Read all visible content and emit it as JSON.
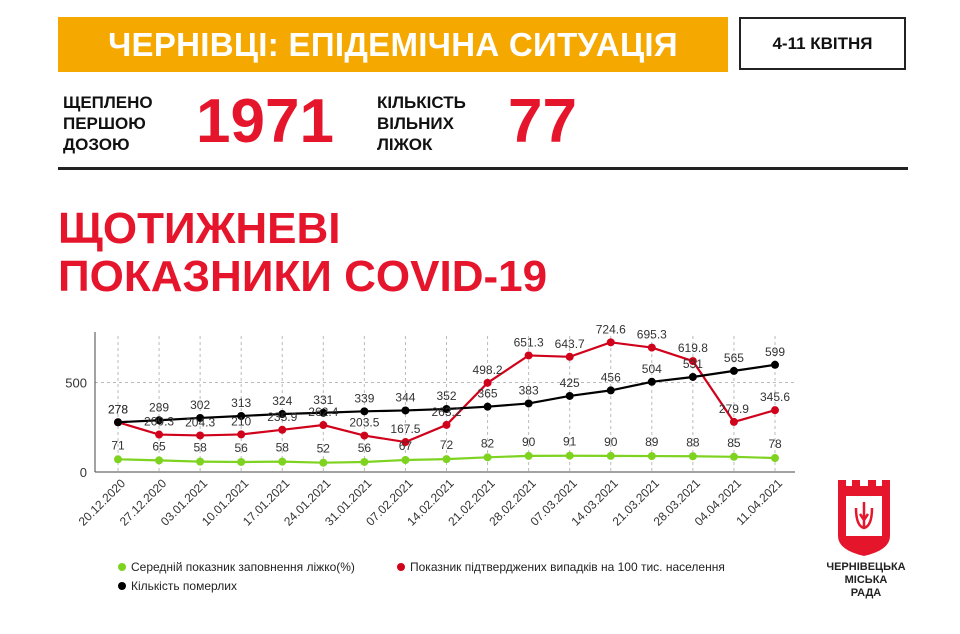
{
  "header": {
    "title": "ЧЕРНІВЦІ: ЕПІДЕМІЧНА СИТУАЦІЯ",
    "date_range": "4-11 КВІТНЯ"
  },
  "stats": {
    "vaccinated_label": [
      "ЩЕПЛЕНО",
      "ПЕРШОЮ",
      "ДОЗОЮ"
    ],
    "vaccinated_value": "1971",
    "beds_label": [
      "КІЛЬКІСТЬ",
      "ВІЛЬНИХ",
      "ЛІЖОК"
    ],
    "beds_value": "77"
  },
  "heading": [
    "ЩОТИЖНЕВІ",
    "ПОКАЗНИКИ COVID-19"
  ],
  "chart_data": {
    "type": "line",
    "x": [
      "20.12.2020",
      "27.12.2020",
      "03.01.2021",
      "10.01.2021",
      "17.01.2021",
      "24.01.2021",
      "31.01.2021",
      "07.02.2021",
      "14.02.2021",
      "21.02.2021",
      "28.02.2021",
      "07.03.2021",
      "14.03.2021",
      "21.03.2021",
      "28.03.2021",
      "04.04.2021",
      "11.04.2021"
    ],
    "yticks": [
      0,
      500
    ],
    "ylim": [
      0,
      760
    ],
    "grid": true,
    "series": [
      {
        "name": "Середній показник заповнення ліжко(%)",
        "color": "#7ed321",
        "values": [
          71,
          65,
          58,
          56,
          58,
          52,
          56,
          67,
          72,
          82,
          90,
          91,
          90,
          89,
          88,
          85,
          78
        ]
      },
      {
        "name": "Показник підтверджених випадків на 100 тис. населення",
        "color": "#d0021b",
        "values": [
          278,
          209.3,
          204.3,
          210,
          235.9,
          262.4,
          203.5,
          167.5,
          263.2,
          498.2,
          651.3,
          643.7,
          724.6,
          695.3,
          619.8,
          279.9,
          345.6
        ]
      },
      {
        "name": "Кількість померлих",
        "color": "#000000",
        "values": [
          278,
          289,
          302,
          313,
          324,
          331,
          339,
          344,
          352,
          365,
          383,
          425,
          456,
          504,
          531,
          565,
          599
        ]
      }
    ],
    "legend_position": "bottom"
  },
  "logo": {
    "text": [
      "ЧЕРНІВЕЦЬКА",
      "МІСЬКА",
      "РАДА"
    ],
    "color": "#e5162c"
  }
}
